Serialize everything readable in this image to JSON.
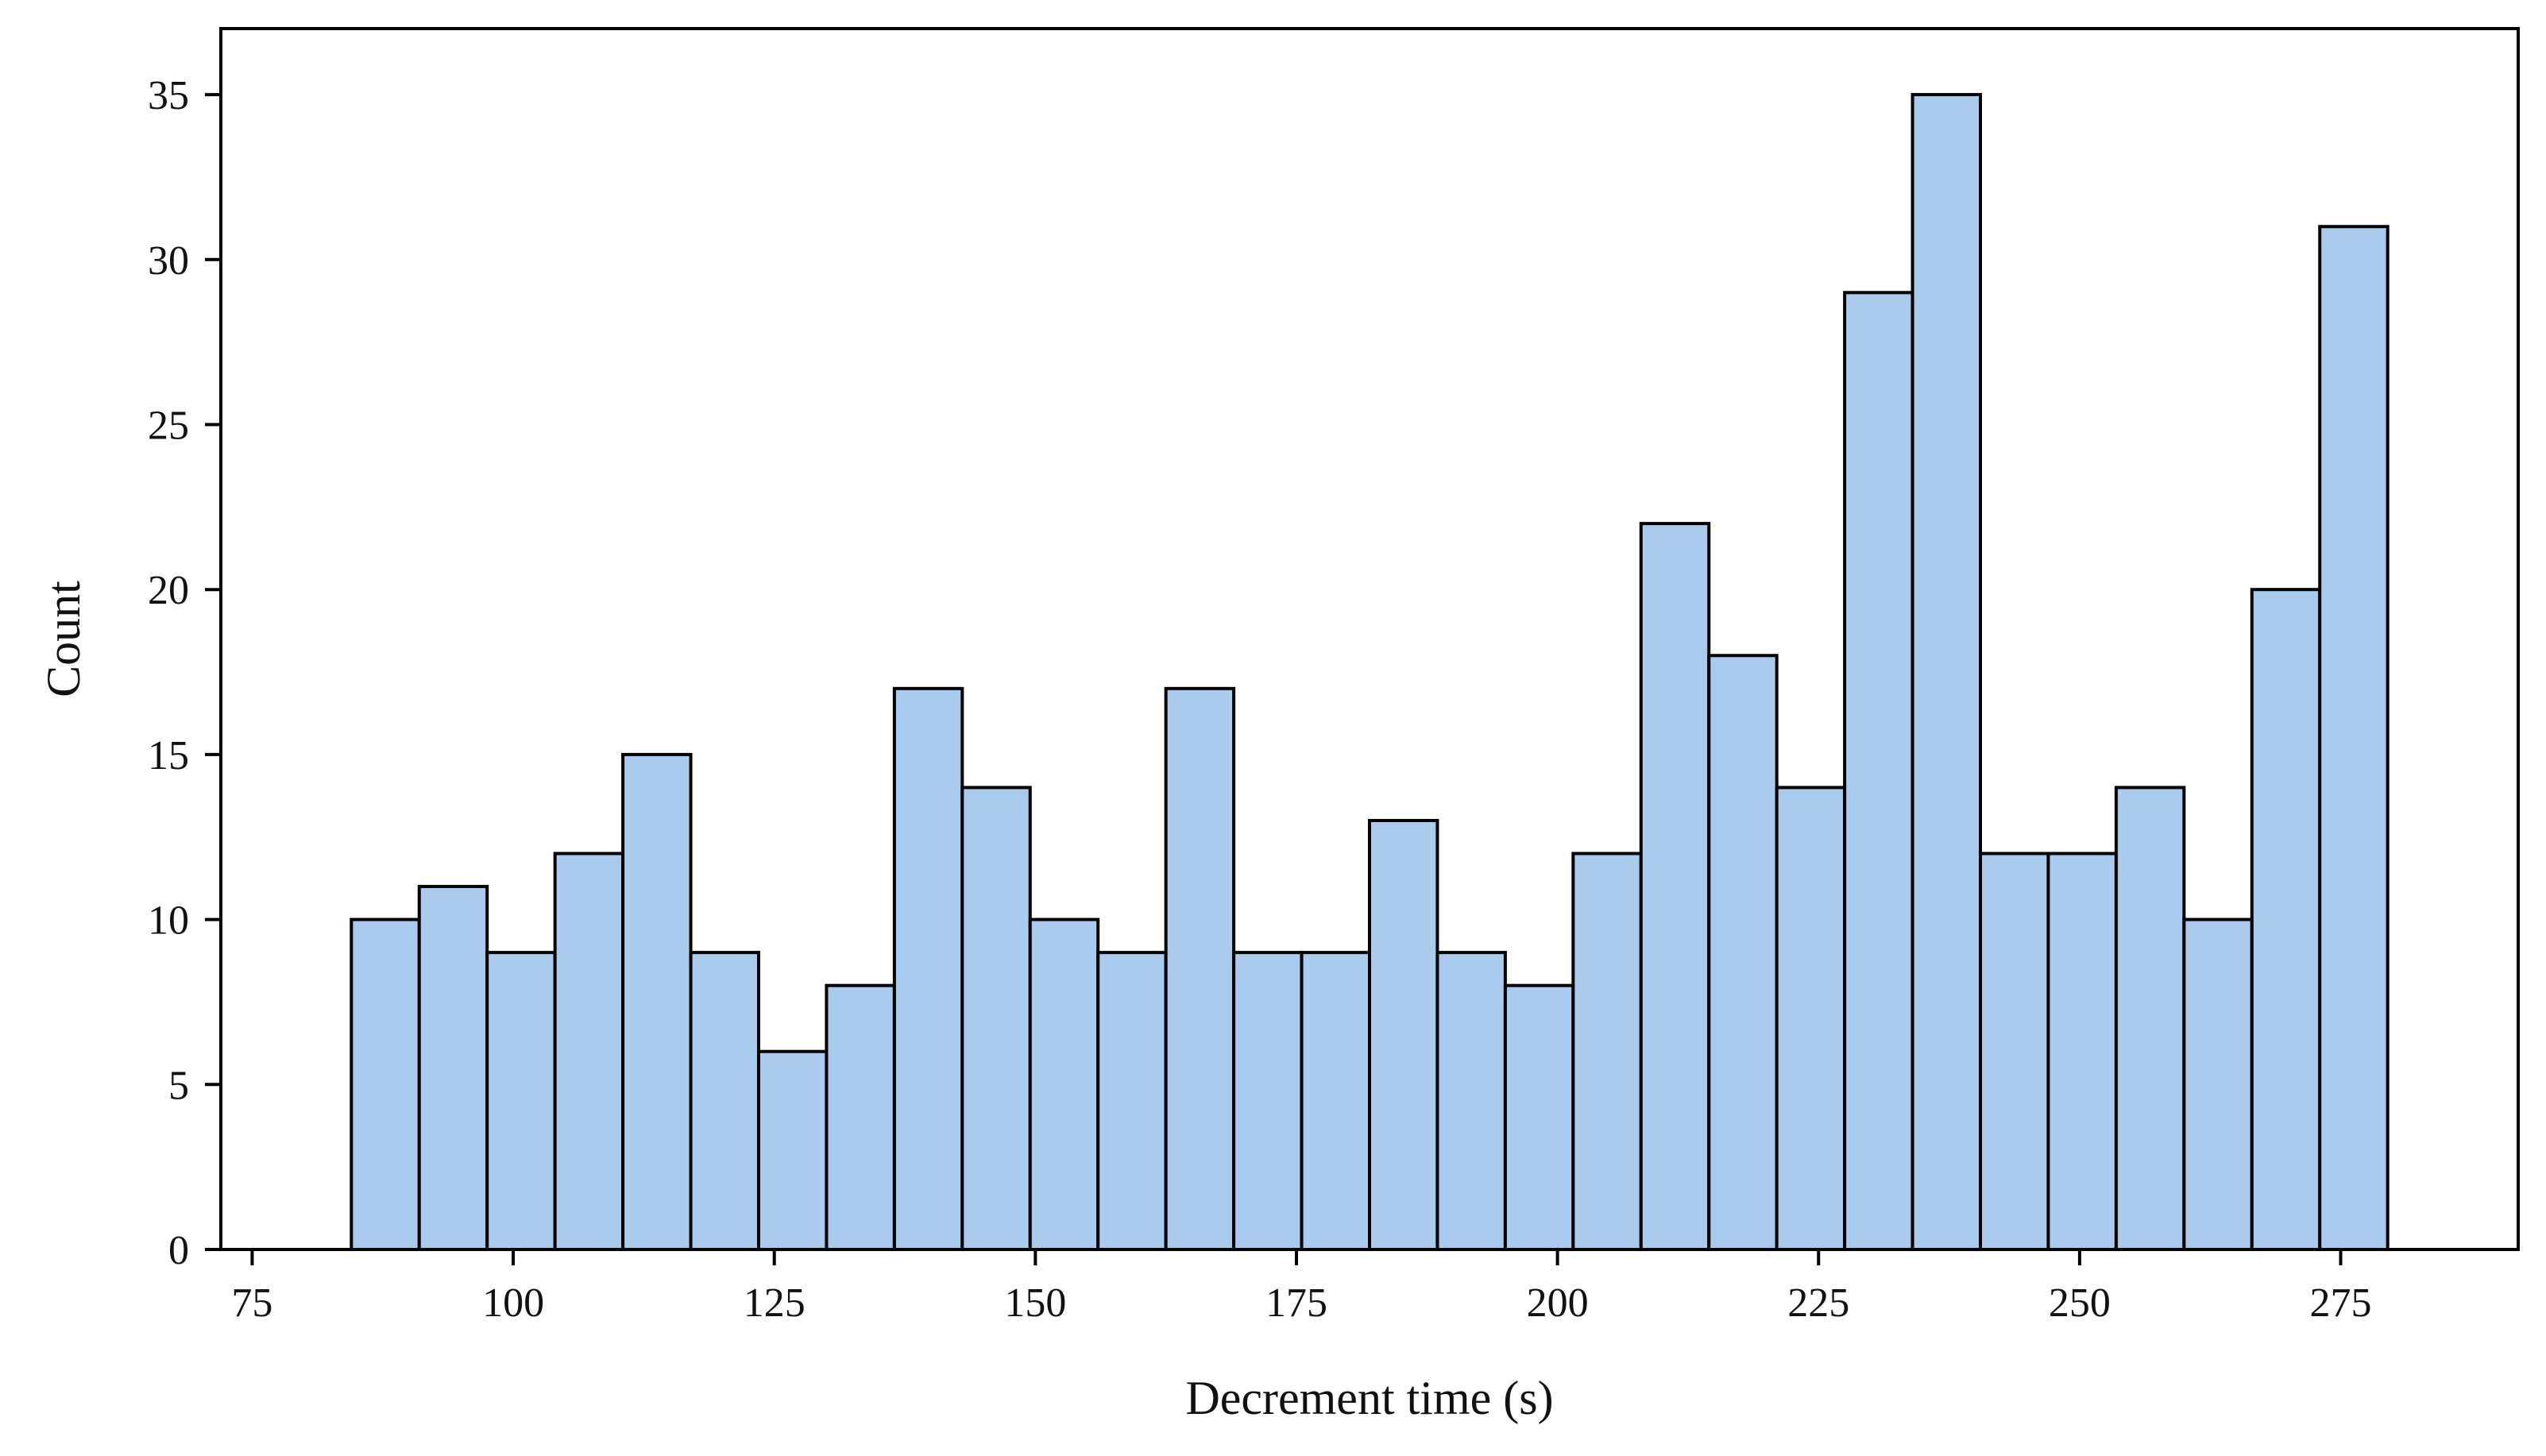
{
  "chart_data": {
    "type": "bar",
    "subtype": "histogram",
    "title": "",
    "xlabel": "Decrement time (s)",
    "ylabel": "Count",
    "xlim": [
      72,
      292
    ],
    "ylim": [
      0,
      37
    ],
    "xticks": [
      75,
      100,
      125,
      150,
      175,
      200,
      225,
      250,
      275
    ],
    "yticks": [
      0,
      5,
      10,
      15,
      20,
      25,
      30,
      35
    ],
    "bin_start": 84.5,
    "bin_width": 6.5,
    "values": [
      10,
      11,
      9,
      12,
      15,
      9,
      6,
      8,
      17,
      14,
      10,
      9,
      17,
      9,
      9,
      13,
      9,
      8,
      12,
      22,
      18,
      14,
      29,
      35,
      12,
      12,
      14,
      10,
      20,
      31
    ],
    "bar_color": "#a8cbee",
    "edge_color": "#000000",
    "grid": false,
    "legend": "none"
  }
}
